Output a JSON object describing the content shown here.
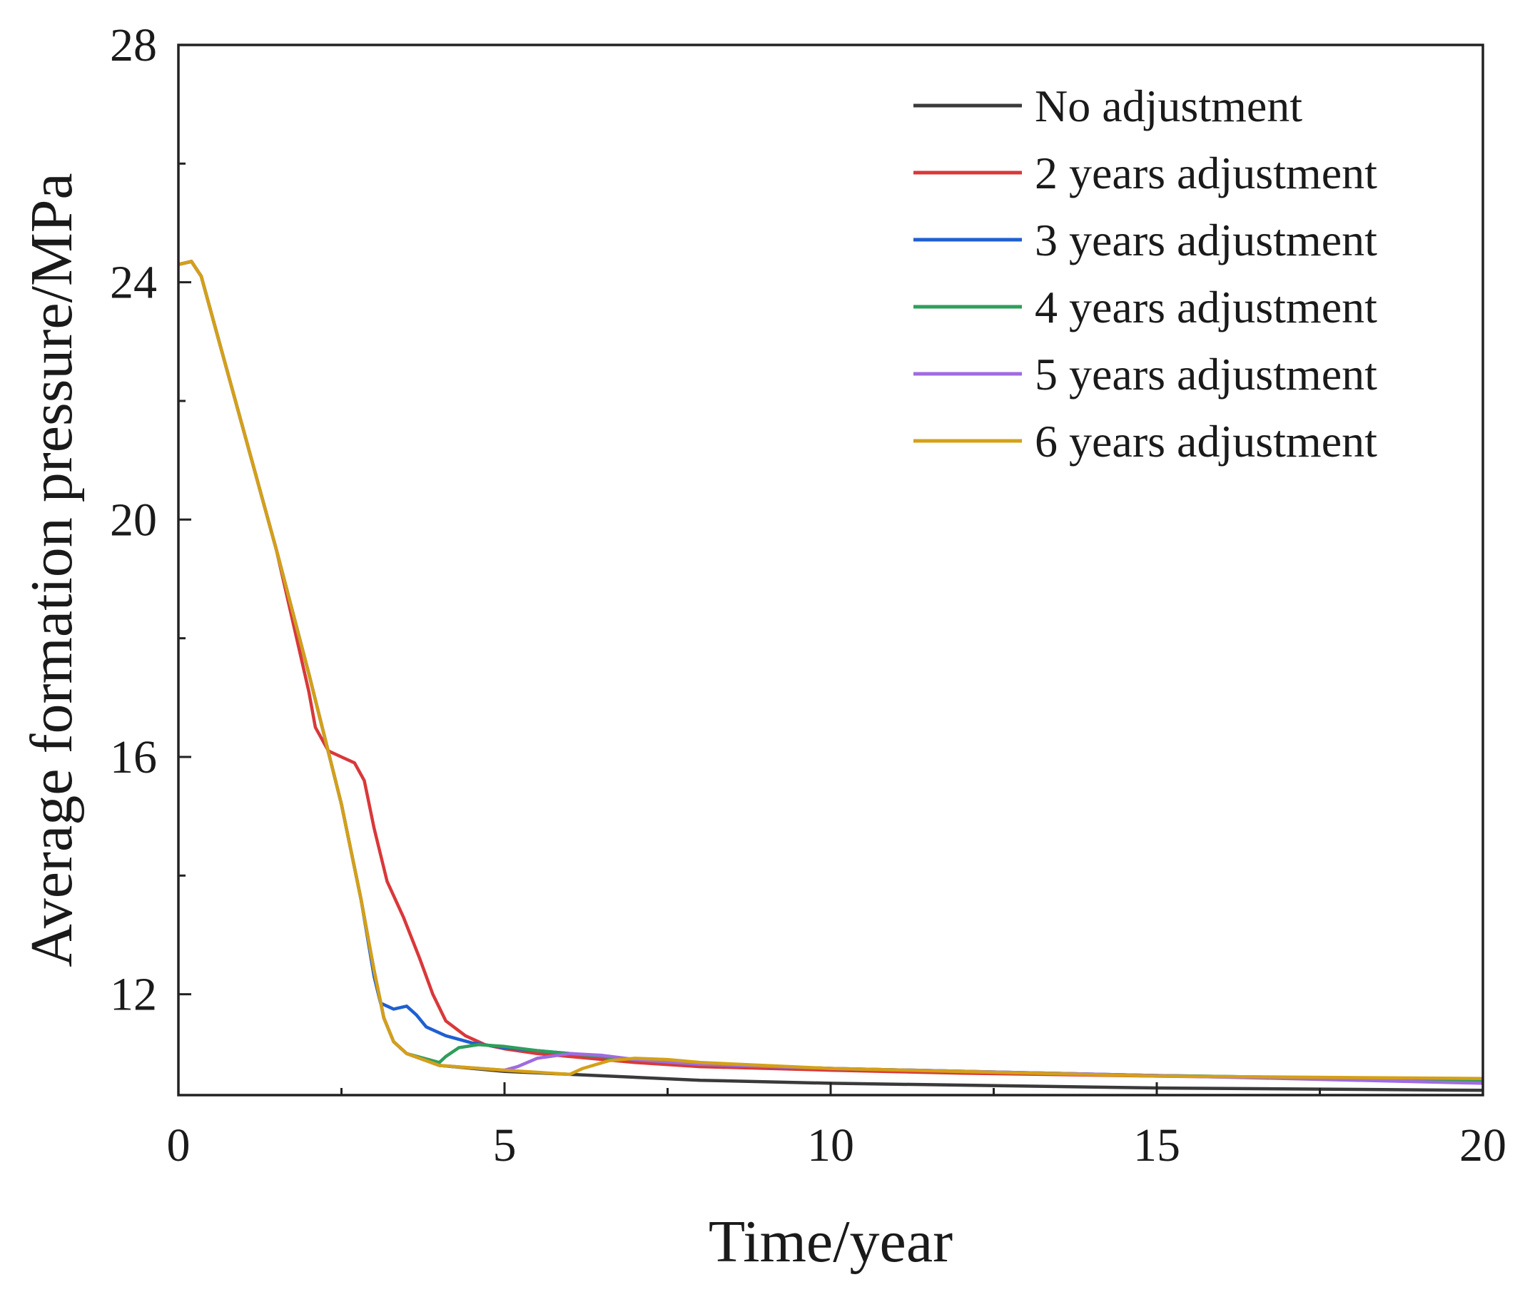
{
  "chart_data": {
    "type": "line",
    "title": "",
    "xlabel": "Time/year",
    "ylabel": "Average formation pressure/MPa",
    "xlim": [
      0,
      20
    ],
    "ylim": [
      10.3,
      28
    ],
    "xticks": [
      0,
      5,
      10,
      15,
      20
    ],
    "yticks": [
      12,
      16,
      20,
      24,
      28
    ],
    "xtick_labels": [
      "0",
      "5",
      "10",
      "15",
      "20"
    ],
    "ytick_labels": [
      "12",
      "16",
      "20",
      "24",
      "28"
    ],
    "grid": false,
    "legend_position": "top-right",
    "series": [
      {
        "name": "No adjustment",
        "color": "#3a3a3a",
        "points": [
          [
            0,
            24.3
          ],
          [
            0.2,
            24.35
          ],
          [
            0.35,
            24.1
          ],
          [
            0.6,
            23.1
          ],
          [
            1.0,
            21.5
          ],
          [
            1.5,
            19.5
          ],
          [
            2.0,
            17.4
          ],
          [
            2.5,
            15.2
          ],
          [
            2.8,
            13.6
          ],
          [
            3.0,
            12.4
          ],
          [
            3.15,
            11.6
          ],
          [
            3.3,
            11.2
          ],
          [
            3.5,
            11.0
          ],
          [
            4.0,
            10.8
          ],
          [
            5.0,
            10.7
          ],
          [
            6.0,
            10.65
          ],
          [
            8.0,
            10.55
          ],
          [
            10.0,
            10.5
          ],
          [
            15.0,
            10.42
          ],
          [
            20.0,
            10.38
          ]
        ]
      },
      {
        "name": "2 years adjustment",
        "color": "#d9383a",
        "points": [
          [
            0,
            24.3
          ],
          [
            0.2,
            24.35
          ],
          [
            0.35,
            24.1
          ],
          [
            0.6,
            23.1
          ],
          [
            1.0,
            21.5
          ],
          [
            1.5,
            19.5
          ],
          [
            2.0,
            17.1
          ],
          [
            2.1,
            16.5
          ],
          [
            2.3,
            16.1
          ],
          [
            2.5,
            16.0
          ],
          [
            2.7,
            15.9
          ],
          [
            2.85,
            15.6
          ],
          [
            3.0,
            14.8
          ],
          [
            3.2,
            13.9
          ],
          [
            3.45,
            13.3
          ],
          [
            3.7,
            12.6
          ],
          [
            3.9,
            12.0
          ],
          [
            4.1,
            11.55
          ],
          [
            4.4,
            11.3
          ],
          [
            4.7,
            11.15
          ],
          [
            5.0,
            11.08
          ],
          [
            5.5,
            11.0
          ],
          [
            6.0,
            10.95
          ],
          [
            7.0,
            10.85
          ],
          [
            8.0,
            10.78
          ],
          [
            10.0,
            10.72
          ],
          [
            12.0,
            10.67
          ],
          [
            15.0,
            10.62
          ],
          [
            20.0,
            10.55
          ]
        ]
      },
      {
        "name": "3 years adjustment",
        "color": "#1f5fd0",
        "points": [
          [
            0,
            24.3
          ],
          [
            0.2,
            24.35
          ],
          [
            0.35,
            24.1
          ],
          [
            0.6,
            23.1
          ],
          [
            1.0,
            21.5
          ],
          [
            1.5,
            19.5
          ],
          [
            2.0,
            17.4
          ],
          [
            2.5,
            15.2
          ],
          [
            2.8,
            13.6
          ],
          [
            3.0,
            12.3
          ],
          [
            3.1,
            11.85
          ],
          [
            3.3,
            11.75
          ],
          [
            3.5,
            11.8
          ],
          [
            3.65,
            11.65
          ],
          [
            3.8,
            11.45
          ],
          [
            4.1,
            11.3
          ],
          [
            4.5,
            11.18
          ],
          [
            5.0,
            11.1
          ],
          [
            6.0,
            11.0
          ],
          [
            7.0,
            10.9
          ],
          [
            8.0,
            10.82
          ],
          [
            10.0,
            10.75
          ],
          [
            15.0,
            10.63
          ],
          [
            20.0,
            10.55
          ]
        ]
      },
      {
        "name": "4 years adjustment",
        "color": "#2e9e5b",
        "points": [
          [
            0,
            24.3
          ],
          [
            0.2,
            24.35
          ],
          [
            0.35,
            24.1
          ],
          [
            0.6,
            23.1
          ],
          [
            1.0,
            21.5
          ],
          [
            1.5,
            19.5
          ],
          [
            2.0,
            17.4
          ],
          [
            2.5,
            15.2
          ],
          [
            2.8,
            13.6
          ],
          [
            3.0,
            12.4
          ],
          [
            3.15,
            11.6
          ],
          [
            3.3,
            11.2
          ],
          [
            3.5,
            11.0
          ],
          [
            4.0,
            10.85
          ],
          [
            4.1,
            10.95
          ],
          [
            4.3,
            11.1
          ],
          [
            4.6,
            11.15
          ],
          [
            5.0,
            11.12
          ],
          [
            5.5,
            11.05
          ],
          [
            6.0,
            11.0
          ],
          [
            7.0,
            10.9
          ],
          [
            8.0,
            10.82
          ],
          [
            10.0,
            10.75
          ],
          [
            15.0,
            10.63
          ],
          [
            20.0,
            10.55
          ]
        ]
      },
      {
        "name": "5 years adjustment",
        "color": "#a06be0",
        "points": [
          [
            0,
            24.3
          ],
          [
            0.2,
            24.35
          ],
          [
            0.35,
            24.1
          ],
          [
            0.6,
            23.1
          ],
          [
            1.0,
            21.5
          ],
          [
            1.5,
            19.5
          ],
          [
            2.0,
            17.4
          ],
          [
            2.5,
            15.2
          ],
          [
            2.8,
            13.6
          ],
          [
            3.0,
            12.4
          ],
          [
            3.15,
            11.6
          ],
          [
            3.3,
            11.2
          ],
          [
            3.5,
            11.0
          ],
          [
            4.0,
            10.8
          ],
          [
            5.0,
            10.72
          ],
          [
            5.2,
            10.78
          ],
          [
            5.5,
            10.92
          ],
          [
            6.0,
            11.0
          ],
          [
            6.5,
            10.97
          ],
          [
            7.0,
            10.9
          ],
          [
            8.0,
            10.82
          ],
          [
            10.0,
            10.75
          ],
          [
            15.0,
            10.63
          ],
          [
            20.0,
            10.5
          ]
        ]
      },
      {
        "name": "6 years adjustment",
        "color": "#d4a017",
        "points": [
          [
            0,
            24.3
          ],
          [
            0.2,
            24.35
          ],
          [
            0.35,
            24.1
          ],
          [
            0.6,
            23.1
          ],
          [
            1.0,
            21.5
          ],
          [
            1.5,
            19.5
          ],
          [
            2.0,
            17.4
          ],
          [
            2.5,
            15.2
          ],
          [
            2.8,
            13.6
          ],
          [
            3.0,
            12.4
          ],
          [
            3.15,
            11.6
          ],
          [
            3.3,
            11.2
          ],
          [
            3.5,
            11.0
          ],
          [
            4.0,
            10.8
          ],
          [
            5.0,
            10.72
          ],
          [
            6.0,
            10.65
          ],
          [
            6.2,
            10.75
          ],
          [
            6.6,
            10.88
          ],
          [
            7.0,
            10.92
          ],
          [
            7.5,
            10.9
          ],
          [
            8.0,
            10.85
          ],
          [
            10.0,
            10.75
          ],
          [
            15.0,
            10.62
          ],
          [
            20.0,
            10.58
          ]
        ]
      }
    ]
  }
}
